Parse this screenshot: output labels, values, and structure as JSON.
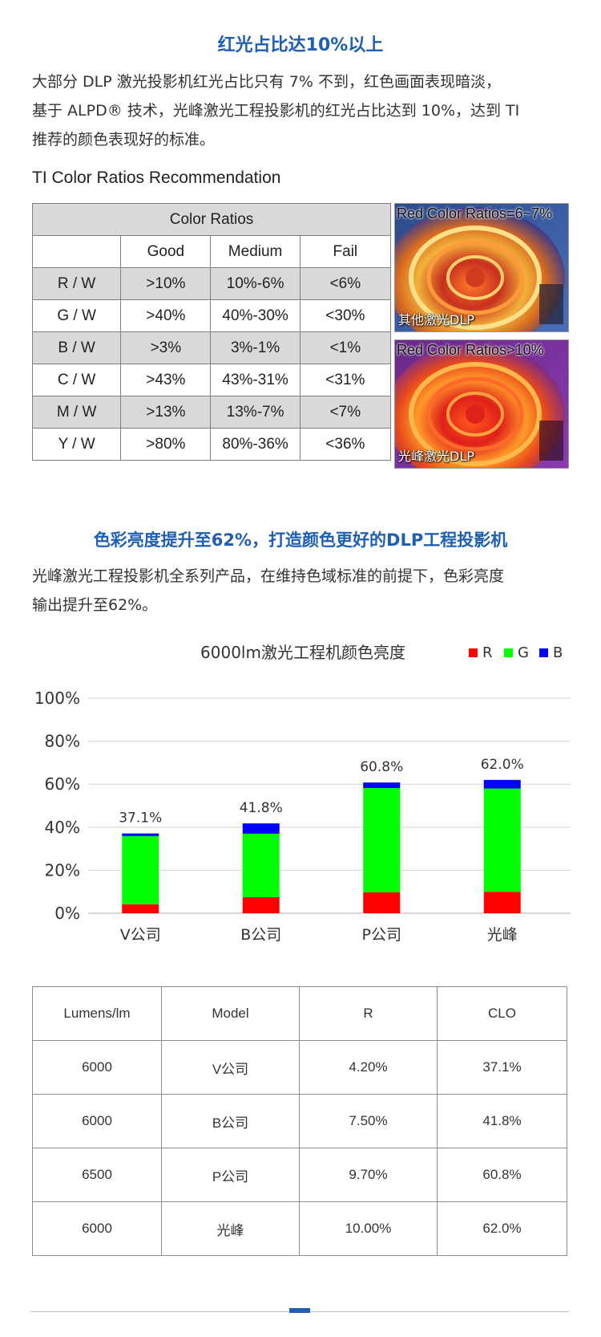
{
  "section1": {
    "heading": "红光占比达10%以上",
    "paragraph_lines": [
      "大部分 DLP 激光投影机红光占比只有 7% 不到，红色画面表现暗淡，",
      "基于 ALPD® 技术，光峰激光工程投影机的红光占比达到 10%，达到 TI",
      "推荐的颜色表现好的标准。"
    ]
  },
  "ti_table": {
    "caption": "TI Color Ratios Recommendation",
    "group_header": "Color Ratios",
    "columns": [
      "",
      "Good",
      "Medium",
      "Fail"
    ],
    "rows": [
      [
        "R / W",
        ">10%",
        "10%-6%",
        "<6%"
      ],
      [
        "G / W",
        ">40%",
        "40%-30%",
        "<30%"
      ],
      [
        "B / W",
        ">3%",
        "3%-1%",
        "<1%"
      ],
      [
        "C / W",
        ">43%",
        "43%-31%",
        "<31%"
      ],
      [
        "M / W",
        ">13%",
        "13%-7%",
        "<7%"
      ],
      [
        "Y / W",
        ">80%",
        "80%-36%",
        "<36%"
      ]
    ]
  },
  "photos": [
    {
      "title": "Red Color Ratios=6~7%",
      "caption": "其他激光DLP"
    },
    {
      "title": "Red Color Ratios>10%",
      "caption": "光峰激光DLP"
    }
  ],
  "section2": {
    "heading": "色彩亮度提升至62%，打造颜色更好的DLP工程投影机",
    "paragraph_lines": [
      "光峰激光工程投影机全系列产品，在维持色域标准的前提下，色彩亮度",
      "输出提升至62%。"
    ]
  },
  "chart_data": {
    "type": "bar",
    "stacked": true,
    "title": "6000lm激光工程机颜色亮度",
    "categories": [
      "V公司",
      "B公司",
      "P公司",
      "光峰"
    ],
    "series": [
      {
        "name": "R",
        "color": "#ff0000",
        "values": [
          4.2,
          7.5,
          9.7,
          10.0
        ]
      },
      {
        "name": "G",
        "color": "#00ff00",
        "values": [
          31.7,
          29.5,
          48.5,
          48.0
        ]
      },
      {
        "name": "B",
        "color": "#0000ff",
        "values": [
          1.2,
          4.8,
          2.6,
          4.0
        ]
      }
    ],
    "totals_labels": [
      "37.1%",
      "41.8%",
      "60.8%",
      "62.0%"
    ],
    "yticks": [
      "0%",
      "20%",
      "40%",
      "60%",
      "80%",
      "100%"
    ],
    "ylim": [
      0,
      100
    ],
    "grid": true,
    "legend_position": "top-right"
  },
  "spec_table": {
    "columns": [
      "Lumens/lm",
      "Model",
      "R",
      "CLO"
    ],
    "rows": [
      [
        "6000",
        "V公司",
        "4.20%",
        "37.1%"
      ],
      [
        "6000",
        "B公司",
        "7.50%",
        "41.8%"
      ],
      [
        "6500",
        "P公司",
        "9.70%",
        "60.8%"
      ],
      [
        "6000",
        "光峰",
        "10.00%",
        "62.0%"
      ]
    ]
  },
  "colors": {
    "heading": "#1f5fb3",
    "table_grey": "#d9d9d9"
  }
}
